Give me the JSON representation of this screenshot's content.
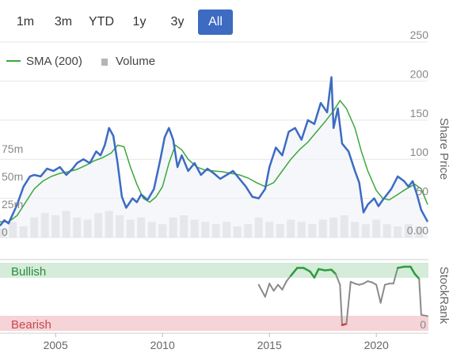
{
  "range_selector": {
    "options": [
      "1m",
      "3m",
      "YTD",
      "1y",
      "3y",
      "All"
    ],
    "selected": "All",
    "active_color": "#3d6bc2"
  },
  "chart_data": [
    {
      "type": "line",
      "ylabel": "Share Price",
      "y_ticks": [
        0.0,
        50,
        100,
        150,
        200,
        250
      ],
      "y_tick_labels": [
        "0.00",
        "50",
        "100",
        "150",
        "200",
        "250"
      ],
      "ylim": [
        0,
        250
      ],
      "x_ticks": [
        2005,
        2010,
        2015,
        2020
      ],
      "xlim": [
        2002.4,
        2022.4
      ],
      "grid": "horizontal",
      "legend": {
        "placement": "top-left",
        "entries": [
          "SMA (200)",
          "Volume"
        ]
      },
      "series": [
        {
          "name": "Share Price",
          "color": "#3d6bc2",
          "x": [
            2002.4,
            2002.6,
            2002.8,
            2003.0,
            2003.2,
            2003.5,
            2003.8,
            2004.0,
            2004.3,
            2004.6,
            2004.9,
            2005.2,
            2005.5,
            2005.8,
            2006.0,
            2006.3,
            2006.6,
            2006.9,
            2007.1,
            2007.3,
            2007.5,
            2007.7,
            2007.9,
            2008.1,
            2008.3,
            2008.6,
            2008.8,
            2009.0,
            2009.3,
            2009.6,
            2009.9,
            2010.1,
            2010.3,
            2010.5,
            2010.7,
            2010.9,
            2011.2,
            2011.5,
            2011.8,
            2012.1,
            2012.4,
            2012.7,
            2013.0,
            2013.3,
            2013.6,
            2013.9,
            2014.2,
            2014.5,
            2014.8,
            2015.0,
            2015.3,
            2015.6,
            2015.9,
            2016.2,
            2016.5,
            2016.8,
            2017.1,
            2017.4,
            2017.7,
            2017.9,
            2018.0,
            2018.2,
            2018.4,
            2018.7,
            2019.0,
            2019.2,
            2019.4,
            2019.6,
            2019.9,
            2020.1,
            2020.3,
            2020.5,
            2020.7,
            2021.0,
            2021.3,
            2021.5,
            2021.7,
            2021.9,
            2022.1,
            2022.4
          ],
          "values": [
            15,
            22,
            18,
            30,
            42,
            65,
            78,
            80,
            78,
            88,
            85,
            90,
            80,
            88,
            95,
            100,
            95,
            110,
            105,
            118,
            140,
            130,
            95,
            52,
            38,
            50,
            45,
            55,
            48,
            62,
            100,
            128,
            140,
            125,
            90,
            105,
            85,
            95,
            80,
            88,
            82,
            75,
            80,
            85,
            75,
            65,
            52,
            50,
            62,
            90,
            115,
            105,
            135,
            140,
            125,
            150,
            145,
            172,
            160,
            205,
            140,
            165,
            120,
            110,
            85,
            70,
            32,
            42,
            50,
            40,
            48,
            55,
            62,
            78,
            72,
            65,
            72,
            55,
            35,
            20
          ]
        },
        {
          "name": "SMA (200)",
          "color": "#3aa83a",
          "x": [
            2002.4,
            2002.8,
            2003.2,
            2003.6,
            2004.0,
            2004.4,
            2004.8,
            2005.2,
            2005.6,
            2006.0,
            2006.4,
            2006.8,
            2007.2,
            2007.6,
            2007.9,
            2008.2,
            2008.5,
            2008.8,
            2009.1,
            2009.4,
            2009.7,
            2010.0,
            2010.3,
            2010.6,
            2010.9,
            2011.2,
            2011.6,
            2012.0,
            2012.4,
            2012.8,
            2013.2,
            2013.6,
            2014.0,
            2014.4,
            2014.8,
            2015.2,
            2015.6,
            2016.0,
            2016.4,
            2016.8,
            2017.2,
            2017.6,
            2018.0,
            2018.3,
            2018.6,
            2019.0,
            2019.3,
            2019.6,
            2020.0,
            2020.3,
            2020.6,
            2021.0,
            2021.4,
            2021.8,
            2022.1,
            2022.4
          ],
          "values": [
            20,
            20,
            28,
            45,
            62,
            72,
            78,
            82,
            84,
            87,
            92,
            98,
            102,
            108,
            118,
            116,
            90,
            68,
            50,
            45,
            52,
            65,
            95,
            118,
            112,
            100,
            90,
            86,
            85,
            84,
            82,
            80,
            76,
            70,
            65,
            70,
            85,
            100,
            112,
            122,
            135,
            148,
            162,
            175,
            165,
            140,
            110,
            85,
            60,
            50,
            48,
            55,
            62,
            68,
            62,
            42
          ]
        }
      ],
      "volume": {
        "name": "Volume",
        "color": "#b5b5b5",
        "axis_ticks": [
          0,
          25,
          50,
          75
        ],
        "axis_tick_labels": [
          "0",
          "25m",
          "50m",
          "75m"
        ],
        "ylim": [
          0,
          75
        ],
        "x": [
          2002.5,
          2003.0,
          2003.5,
          2004.0,
          2004.5,
          2005.0,
          2005.5,
          2006.0,
          2006.5,
          2007.0,
          2007.5,
          2008.0,
          2008.5,
          2009.0,
          2009.5,
          2010.0,
          2010.5,
          2011.0,
          2011.5,
          2012.0,
          2012.5,
          2013.0,
          2013.5,
          2014.0,
          2014.5,
          2015.0,
          2015.5,
          2016.0,
          2016.5,
          2017.0,
          2017.5,
          2018.0,
          2018.5,
          2019.0,
          2019.5,
          2020.0,
          2020.5,
          2021.0,
          2021.5,
          2022.0
        ],
        "values": [
          8,
          14,
          10,
          18,
          22,
          20,
          24,
          18,
          16,
          22,
          24,
          20,
          16,
          18,
          14,
          12,
          18,
          20,
          16,
          14,
          12,
          14,
          10,
          12,
          18,
          14,
          12,
          16,
          14,
          12,
          16,
          18,
          20,
          14,
          12,
          16,
          12,
          10,
          12,
          10
        ]
      }
    },
    {
      "type": "line",
      "ylabel": "StockRank",
      "bands": [
        {
          "label": "Bullish",
          "color": "#d4ecd9",
          "text_color": "#2d8a3e"
        },
        {
          "label": "Bearish",
          "color": "#f5d3d6",
          "text_color": "#c7484f"
        }
      ],
      "y_ticks": [
        0
      ],
      "y_tick_labels": [
        "0"
      ],
      "ylim": [
        0,
        100
      ],
      "x_ticks": [
        2005,
        2010,
        2015,
        2020
      ],
      "x_tick_labels": [
        "2005",
        "2010",
        "2015",
        "2020"
      ],
      "xlim": [
        2002.4,
        2022.4
      ],
      "series": [
        {
          "name": "StockRank",
          "color": "#8a8a8a",
          "high_color": "#2e9a3e",
          "low_color": "#d03a3a",
          "high_threshold": 80,
          "low_threshold": 5,
          "x": [
            2014.5,
            2014.8,
            2015.0,
            2015.2,
            2015.4,
            2015.6,
            2015.8,
            2016.0,
            2016.3,
            2016.6,
            2016.9,
            2017.1,
            2017.3,
            2017.6,
            2017.9,
            2018.1,
            2018.3,
            2018.4,
            2018.6,
            2018.8,
            2019.0,
            2019.2,
            2019.4,
            2019.6,
            2019.8,
            2020.0,
            2020.2,
            2020.4,
            2020.6,
            2020.8,
            2021.0,
            2021.3,
            2021.6,
            2021.8,
            2022.0,
            2022.1,
            2022.4
          ],
          "values": [
            70,
            50,
            72,
            60,
            70,
            62,
            76,
            85,
            98,
            98,
            92,
            82,
            96,
            94,
            95,
            88,
            70,
            3,
            5,
            75,
            72,
            70,
            72,
            76,
            74,
            70,
            40,
            70,
            72,
            72,
            98,
            100,
            100,
            88,
            80,
            20,
            18
          ]
        }
      ]
    }
  ]
}
